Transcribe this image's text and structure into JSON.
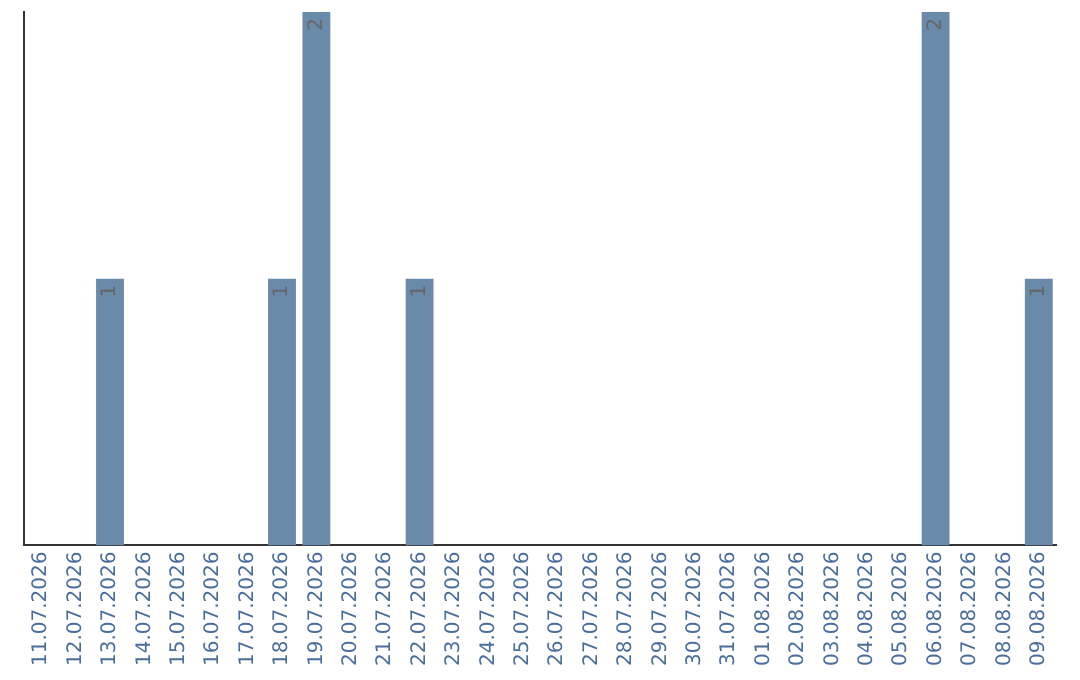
{
  "chart_data": {
    "type": "bar",
    "categories": [
      "11.07.2026",
      "12.07.2026",
      "13.07.2026",
      "14.07.2026",
      "15.07.2026",
      "16.07.2026",
      "17.07.2026",
      "18.07.2026",
      "19.07.2026",
      "20.07.2026",
      "21.07.2026",
      "22.07.2026",
      "23.07.2026",
      "24.07.2026",
      "25.07.2026",
      "26.07.2026",
      "27.07.2026",
      "28.07.2026",
      "29.07.2026",
      "30.07.2026",
      "31.07.2026",
      "01.08.2026",
      "02.08.2026",
      "03.08.2026",
      "04.08.2026",
      "05.08.2026",
      "06.08.2026",
      "07.08.2026",
      "08.08.2026",
      "09.08.2026"
    ],
    "values": [
      0,
      0,
      1,
      0,
      0,
      0,
      0,
      1,
      2,
      0,
      0,
      1,
      0,
      0,
      0,
      0,
      0,
      0,
      0,
      0,
      0,
      0,
      0,
      0,
      0,
      0,
      2,
      0,
      0,
      1
    ],
    "value_labels": [
      null,
      null,
      "1",
      null,
      null,
      null,
      null,
      "1",
      "2",
      null,
      null,
      "1",
      null,
      null,
      null,
      null,
      null,
      null,
      null,
      null,
      null,
      null,
      null,
      null,
      null,
      null,
      "2",
      null,
      null,
      "1"
    ],
    "color": "#6a8aaa",
    "tick_labels": "x",
    "grid": false,
    "legend": false
  }
}
